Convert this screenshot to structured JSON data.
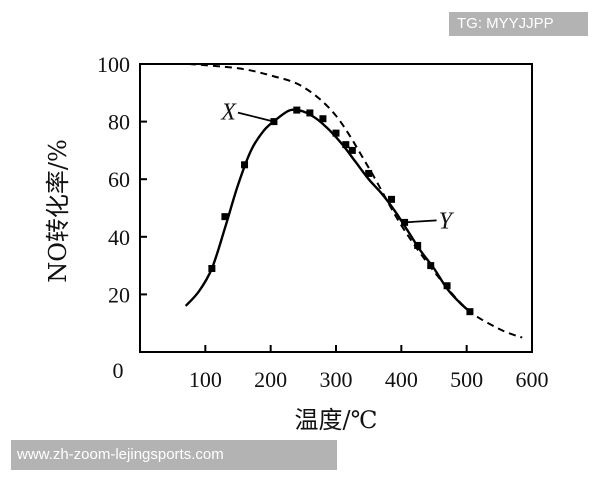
{
  "watermarks": {
    "top_right": "TG: MYYJJPP",
    "bottom_left": "www.zh-zoom-lejingsports.com"
  },
  "chart_data": {
    "type": "line",
    "title": "",
    "xlabel": "温度/℃",
    "ylabel": "NO转化率/%",
    "xlim": [
      0,
      600
    ],
    "ylim": [
      0,
      100
    ],
    "x_ticks": [
      0,
      100,
      200,
      300,
      400,
      500,
      600
    ],
    "y_ticks": [
      20,
      40,
      60,
      80,
      100
    ],
    "origin_label": "0",
    "grid": false,
    "legend": "none",
    "series": [
      {
        "style": "dashed",
        "x": [
          75,
          150,
          200,
          250,
          300,
          350,
          400,
          450,
          500,
          550,
          585
        ],
        "y": [
          100,
          98.5,
          96,
          92,
          82,
          64,
          44,
          28,
          15,
          8,
          5
        ]
      },
      {
        "style": "solid",
        "x": [
          70,
          90,
          110,
          130,
          150,
          170,
          190,
          210,
          230,
          250,
          270,
          290,
          310,
          330,
          350,
          370,
          390,
          410,
          430,
          450,
          470,
          490,
          505
        ],
        "y": [
          16,
          21,
          29,
          43,
          58,
          70,
          77,
          81,
          84,
          83.5,
          81,
          77,
          72,
          66,
          60,
          55,
          49,
          42,
          35,
          29,
          22,
          17,
          14
        ]
      }
    ],
    "markers": {
      "x": [
        110,
        130,
        160,
        205,
        240,
        260,
        280,
        300,
        315,
        325,
        350,
        385,
        405,
        425,
        445,
        470,
        505
      ],
      "y": [
        29,
        47,
        65,
        80,
        84,
        83,
        81,
        76,
        72,
        70,
        62,
        53,
        45,
        37,
        30,
        23,
        14
      ]
    },
    "annotations": [
      {
        "text": "X",
        "x": 205,
        "y": 80
      },
      {
        "text": "Y",
        "x": 405,
        "y": 45
      }
    ]
  }
}
